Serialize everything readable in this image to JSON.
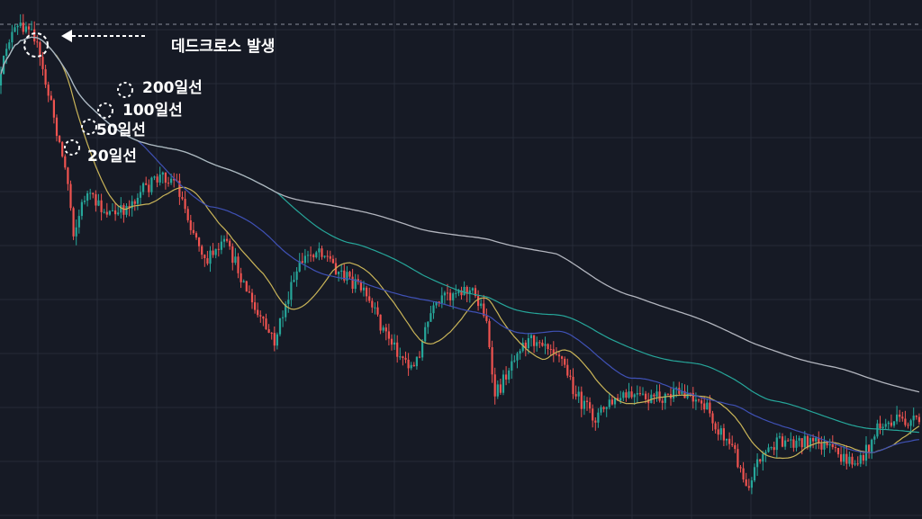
{
  "chart_data": {
    "type": "candlestick",
    "grid": true,
    "reference_line": "dashed horizontal line at the top price level",
    "colors": {
      "background": "#161a25",
      "grid": "#262b38",
      "up": "#26a69a",
      "down": "#ef5350",
      "ma20": "#c9b458",
      "ma50": "#3f51b5",
      "ma100": "#26a69a",
      "ma200": "#b2b5be",
      "annotation": "#ffffff"
    },
    "series": [
      {
        "name": "20일선",
        "color": "#c9b458"
      },
      {
        "name": "50일선",
        "color": "#3f51b5"
      },
      {
        "name": "100일선",
        "color": "#26a69a"
      },
      {
        "name": "200일선",
        "color": "#b2b5be"
      }
    ],
    "annotations": [
      {
        "text": "데드크로스 발생",
        "arrow": "left"
      },
      {
        "text": "200일선"
      },
      {
        "text": "100일선"
      },
      {
        "text": "50일선"
      },
      {
        "text": "20일선"
      }
    ]
  }
}
